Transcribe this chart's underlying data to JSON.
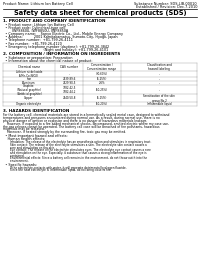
{
  "header_left": "Product Name: Lithium Ion Battery Cell",
  "header_right_line1": "Substance Number: SDS-LIB-00010",
  "header_right_line2": "Established / Revision: Dec.7.2010",
  "title": "Safety data sheet for chemical products (SDS)",
  "section1_title": "1. PRODUCT AND COMPANY IDENTIFICATION",
  "section1_lines": [
    "  • Product name: Lithium Ion Battery Cell",
    "  • Product code: Cylindrical-type cell",
    "        IWF8860U, IWF8850U, IWF8850A",
    "  • Company name:    Sanyo Electric Co., Ltd., Mobile Energy Company",
    "  • Address:          2001 Kamitakamatsu, Sumoto-City, Hyogo, Japan",
    "  • Telephone number:  +81-799-26-4111",
    "  • Fax number:  +81-799-26-4120",
    "  • Emergency telephone number (daytime): +81-799-26-3842",
    "                                    (Night and holiday): +81-799-26-4101"
  ],
  "section2_title": "2. COMPOSITION / INFORMATION ON INGREDIENTS",
  "section2_sub": "  • Substance or preparation: Preparation",
  "section2_sub2": "  • Information about the chemical nature of product:",
  "table_header_labels": [
    "Chemical name",
    "CAS number",
    "Concentration /\nConcentration range",
    "Classification and\nhazard labeling"
  ],
  "table_rows": [
    [
      "Lithium nickel oxide\n(LiMn-Co-NiO2)",
      "-",
      "(30-60%)",
      "-"
    ],
    [
      "Iron",
      "7439-89-6",
      "(5-25%)",
      "-"
    ],
    [
      "Aluminum",
      "7429-90-5",
      "2.6%",
      "-"
    ],
    [
      "Graphite\n(Natural graphite)\n(Artificial graphite)",
      "7782-42-5\n7782-44-2",
      "(10-25%)",
      "-"
    ],
    [
      "Copper",
      "7440-50-8",
      "(5-15%)",
      "Sensitization of the skin\ngroup No.2"
    ],
    [
      "Organic electrolyte",
      "-",
      "(10-20%)",
      "Inflammable liquid"
    ]
  ],
  "section3_title": "3. HAZARDS IDENTIFICATION",
  "section3_para": [
    "For the battery cell, chemical materials are stored in a hermetically sealed metal case, designed to withstand",
    "temperatures and pressures encountered during normal use. As a result, during normal use, there is no",
    "physical danger of ignition or explosion and there is no danger of hazardous materials leakage.",
    "    However, if exposed to a fire added mechanical shocks, decomposed, emitted electric where my case use,",
    "the gas release cannot be operated. The battery cell case will be breached of fire pollutants, hazardous",
    "materials may be released.",
    "    Moreover, if heated strongly by the surrounding fire, toxic gas may be emitted."
  ],
  "section3_bullet1": "  • Most important hazard and effects:",
  "section3_human": "    Human health effects:",
  "section3_human_lines": [
    "        Inhalation: The release of the electrolyte has an anaesthesia action and stimulates in respiratory tract.",
    "        Skin contact: The release of the electrolyte stimulates a skin. The electrolyte skin contact causes a",
    "        sore and stimulation on the skin.",
    "        Eye contact: The release of the electrolyte stimulates eyes. The electrolyte eye contact causes a sore",
    "        and stimulation on the eye. Especially, a substance that causes a strong inflammation of the eye is",
    "        contained.",
    "        Environmental effects: Since a battery cell remains in the environment, do not throw out it into the",
    "        environment."
  ],
  "section3_specific": "  • Specific hazards:",
  "section3_specific_lines": [
    "        If the electrolyte contacts with water, it will generate detrimental hydrogen fluoride.",
    "        Since the neat electrolyte is inflammable liquid, do not bring close to fire."
  ],
  "bg_color": "#ffffff",
  "text_color": "#000000",
  "table_line_color": "#aaaaaa",
  "hfs": 2.5,
  "tfs": 4.8,
  "sfs": 3.0,
  "bfs": 2.4
}
